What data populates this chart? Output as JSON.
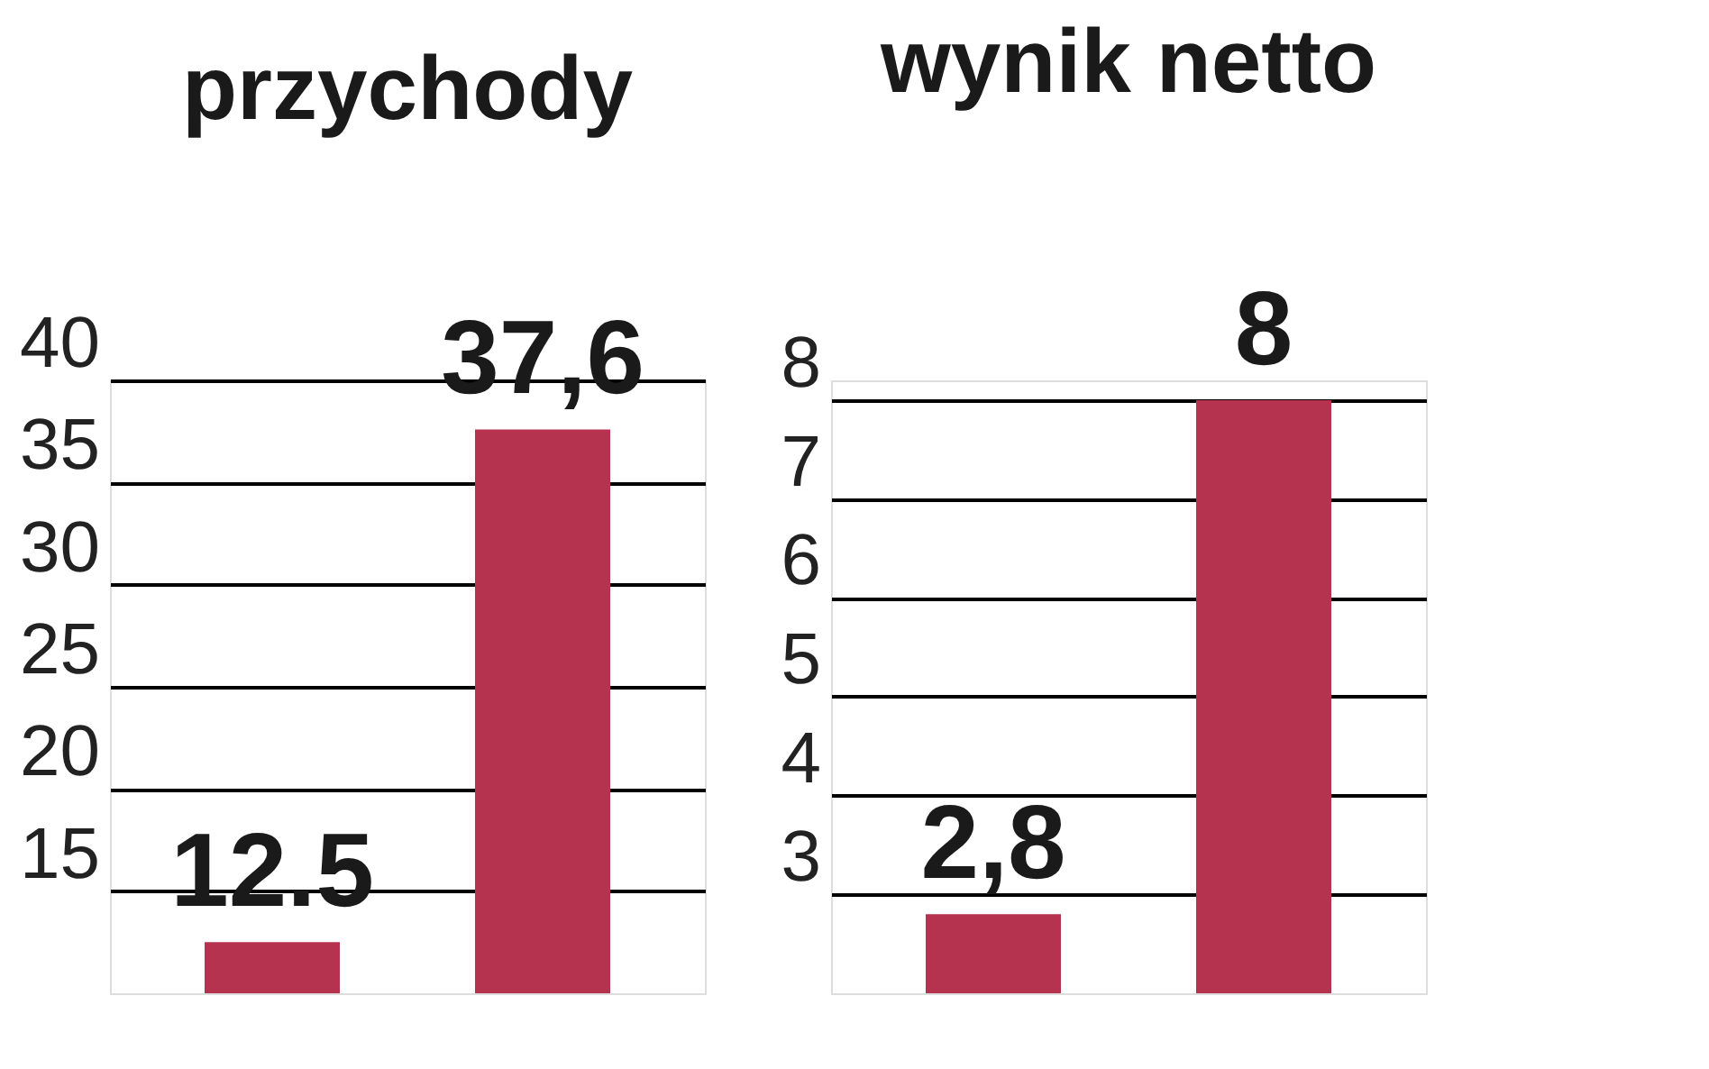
{
  "chart_data": [
    {
      "type": "bar",
      "title": "przychody",
      "categories": [
        null,
        null
      ],
      "values": [
        12.5,
        37.6
      ],
      "color": "#b5334f",
      "value_labels": [
        "12.5",
        "37,6"
      ],
      "ylim": [
        10,
        40
      ],
      "yticks": [
        15,
        20,
        25,
        30,
        35,
        40
      ],
      "grid": "y",
      "tick_labels": "y"
    },
    {
      "type": "bar",
      "title": "wynik netto",
      "categories": [
        null,
        null
      ],
      "values": [
        2.8,
        8
      ],
      "color": "#b5334f",
      "value_labels": [
        "2,8",
        "8"
      ],
      "ylim": [
        2,
        8.2
      ],
      "yticks": [
        3,
        4,
        5,
        6,
        7,
        8
      ],
      "grid": "y",
      "tick_labels": "y"
    }
  ]
}
